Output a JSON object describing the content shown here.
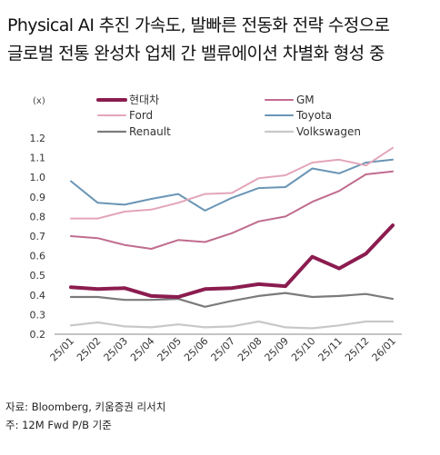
{
  "title_line1": "Physical AI 추진 가속도, 발빠른 전동화 전략 수정으로",
  "title_line2": "글로벌 전통 완성차 업체 간 밸류에이션 차별화 형성 중",
  "source": "자료: Bloomberg, 키움증권 리서치",
  "note": "주: 12M Fwd P/B 기준",
  "chart_data": {
    "type": "line",
    "unit_label": "(x)",
    "categories": [
      "25/01",
      "25/02",
      "25/03",
      "25/04",
      "25/05",
      "25/06",
      "25/07",
      "25/08",
      "25/09",
      "25/10",
      "25/11",
      "25/12",
      "26/01"
    ],
    "ylim": [
      0.2,
      1.2
    ],
    "yticks": [
      "1.2",
      "1.1",
      "1.0",
      "0.9",
      "0.8",
      "0.7",
      "0.6",
      "0.5",
      "0.4",
      "0.3",
      "0.2"
    ],
    "legend_position": "top",
    "series": [
      {
        "name": "현대차",
        "color": "#8b1c4f",
        "width": 4,
        "values": [
          0.44,
          0.43,
          0.435,
          0.395,
          0.39,
          0.43,
          0.435,
          0.455,
          0.445,
          0.595,
          0.535,
          0.61,
          0.755
        ]
      },
      {
        "name": "GM",
        "color": "#c06c8e",
        "width": 2,
        "values": [
          0.7,
          0.69,
          0.655,
          0.635,
          0.68,
          0.67,
          0.715,
          0.775,
          0.8,
          0.875,
          0.93,
          1.015,
          1.03
        ]
      },
      {
        "name": "Ford",
        "color": "#e3a5b9",
        "width": 2,
        "values": [
          0.79,
          0.79,
          0.825,
          0.835,
          0.87,
          0.915,
          0.92,
          0.995,
          1.01,
          1.075,
          1.09,
          1.06,
          1.15
        ]
      },
      {
        "name": "Toyota",
        "color": "#6a95b6",
        "width": 2,
        "values": [
          0.98,
          0.87,
          0.86,
          0.89,
          0.915,
          0.83,
          0.895,
          0.945,
          0.95,
          1.045,
          1.02,
          1.075,
          1.09
        ]
      },
      {
        "name": "Renault",
        "color": "#7b7b7b",
        "width": 2.2,
        "values": [
          0.39,
          0.39,
          0.375,
          0.375,
          0.38,
          0.34,
          0.37,
          0.395,
          0.41,
          0.39,
          0.395,
          0.405,
          0.38
        ]
      },
      {
        "name": "Volkswagen",
        "color": "#c8c8c8",
        "width": 2.2,
        "values": [
          0.245,
          0.26,
          0.24,
          0.235,
          0.25,
          0.235,
          0.24,
          0.265,
          0.235,
          0.23,
          0.245,
          0.265,
          0.265
        ]
      }
    ]
  }
}
